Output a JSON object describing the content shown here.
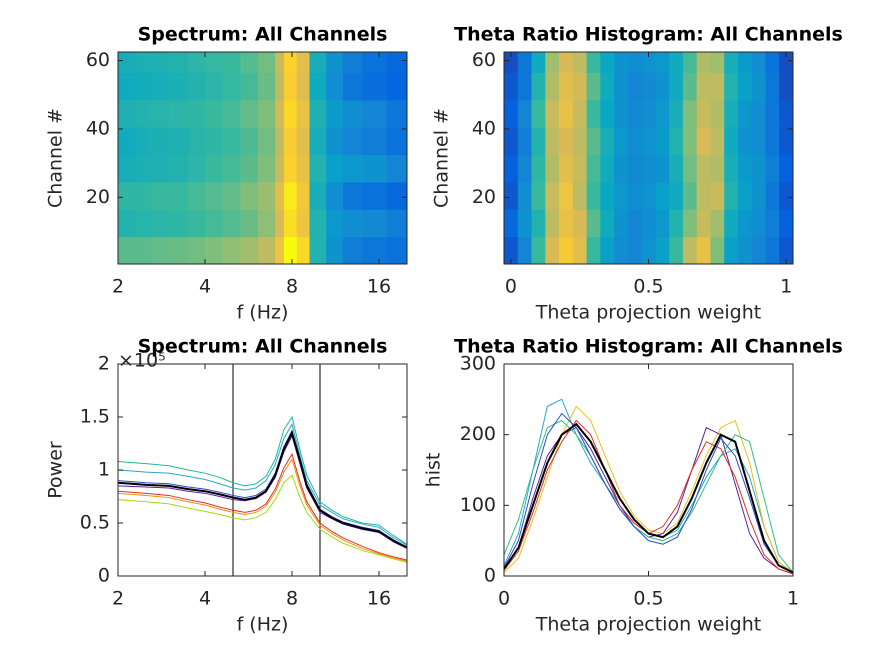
{
  "chart_data": [
    {
      "type": "heatmap",
      "title": "Spectrum: All Channels",
      "xlabel": "f (Hz)",
      "ylabel": "Channel #",
      "xscale": "log",
      "xlim": [
        2,
        20
      ],
      "ylim": [
        0.5,
        62.5
      ],
      "xticks": [
        2,
        4,
        8,
        16
      ],
      "yticks": [
        20,
        40,
        60
      ],
      "colormap": "parula",
      "zlim": [
        0,
        1
      ],
      "xbins": [
        2,
        2.3,
        2.6,
        3,
        3.5,
        4,
        4.6,
        5.3,
        6.1,
        7,
        7.5,
        8.3,
        9.2,
        10.5,
        12,
        14,
        17,
        20
      ],
      "ybins": [
        0.5,
        8.5,
        16.5,
        24.5,
        32.5,
        40.5,
        48.5,
        56.5,
        62.5
      ],
      "z": [
        [
          0.55,
          0.55,
          0.56,
          0.57,
          0.58,
          0.6,
          0.62,
          0.65,
          0.7,
          0.82,
          1.0,
          0.9,
          0.45,
          0.3,
          0.22,
          0.2,
          0.18
        ],
        [
          0.45,
          0.46,
          0.47,
          0.48,
          0.5,
          0.52,
          0.54,
          0.57,
          0.62,
          0.75,
          0.92,
          0.82,
          0.45,
          0.32,
          0.28,
          0.26,
          0.22
        ],
        [
          0.48,
          0.48,
          0.5,
          0.5,
          0.52,
          0.54,
          0.56,
          0.6,
          0.64,
          0.78,
          0.95,
          0.84,
          0.42,
          0.28,
          0.2,
          0.18,
          0.15
        ],
        [
          0.42,
          0.43,
          0.44,
          0.45,
          0.47,
          0.5,
          0.52,
          0.55,
          0.6,
          0.72,
          0.88,
          0.8,
          0.45,
          0.35,
          0.32,
          0.3,
          0.25
        ],
        [
          0.4,
          0.42,
          0.43,
          0.44,
          0.46,
          0.48,
          0.5,
          0.53,
          0.58,
          0.7,
          0.86,
          0.78,
          0.42,
          0.3,
          0.25,
          0.22,
          0.18
        ],
        [
          0.44,
          0.45,
          0.46,
          0.47,
          0.48,
          0.5,
          0.52,
          0.56,
          0.6,
          0.74,
          0.9,
          0.8,
          0.44,
          0.33,
          0.28,
          0.25,
          0.2
        ],
        [
          0.4,
          0.41,
          0.42,
          0.43,
          0.45,
          0.47,
          0.49,
          0.52,
          0.57,
          0.7,
          0.87,
          0.77,
          0.4,
          0.28,
          0.2,
          0.17,
          0.14
        ],
        [
          0.42,
          0.43,
          0.44,
          0.45,
          0.47,
          0.49,
          0.5,
          0.54,
          0.58,
          0.72,
          0.88,
          0.78,
          0.42,
          0.3,
          0.22,
          0.18,
          0.15
        ]
      ]
    },
    {
      "type": "heatmap",
      "title": "Theta Ratio Histogram: All Channels",
      "xlabel": "Theta projection weight",
      "ylabel": "Channel #",
      "xlim": [
        -0.025,
        1.025
      ],
      "ylim": [
        0.5,
        62.5
      ],
      "xticks": [
        0,
        0.5,
        1
      ],
      "yticks": [
        20,
        40,
        60
      ],
      "colormap": "parula",
      "zlim": [
        0,
        1
      ],
      "xbins": [
        -0.025,
        0.025,
        0.075,
        0.125,
        0.175,
        0.225,
        0.275,
        0.325,
        0.375,
        0.425,
        0.475,
        0.525,
        0.575,
        0.625,
        0.675,
        0.725,
        0.775,
        0.825,
        0.875,
        0.925,
        0.975,
        1.025
      ],
      "ybins": [
        0.5,
        8.5,
        16.5,
        24.5,
        32.5,
        40.5,
        48.5,
        56.5,
        62.5
      ],
      "z": [
        [
          0.1,
          0.25,
          0.5,
          0.75,
          0.85,
          0.78,
          0.5,
          0.35,
          0.28,
          0.25,
          0.3,
          0.35,
          0.5,
          0.7,
          0.8,
          0.6,
          0.35,
          0.3,
          0.25,
          0.2,
          0.1
        ],
        [
          0.15,
          0.3,
          0.45,
          0.7,
          0.8,
          0.75,
          0.55,
          0.4,
          0.3,
          0.25,
          0.28,
          0.32,
          0.45,
          0.6,
          0.72,
          0.65,
          0.4,
          0.32,
          0.28,
          0.22,
          0.12
        ],
        [
          0.1,
          0.28,
          0.5,
          0.72,
          0.82,
          0.7,
          0.5,
          0.38,
          0.32,
          0.28,
          0.3,
          0.35,
          0.4,
          0.55,
          0.7,
          0.72,
          0.45,
          0.35,
          0.3,
          0.2,
          0.1
        ],
        [
          0.12,
          0.25,
          0.48,
          0.68,
          0.78,
          0.72,
          0.52,
          0.4,
          0.3,
          0.27,
          0.28,
          0.3,
          0.42,
          0.58,
          0.7,
          0.68,
          0.42,
          0.33,
          0.3,
          0.22,
          0.12
        ],
        [
          0.1,
          0.22,
          0.45,
          0.7,
          0.75,
          0.7,
          0.55,
          0.42,
          0.32,
          0.28,
          0.3,
          0.33,
          0.45,
          0.6,
          0.75,
          0.7,
          0.4,
          0.3,
          0.28,
          0.2,
          0.1
        ],
        [
          0.12,
          0.25,
          0.5,
          0.72,
          0.8,
          0.72,
          0.5,
          0.38,
          0.3,
          0.26,
          0.28,
          0.32,
          0.42,
          0.6,
          0.72,
          0.68,
          0.42,
          0.32,
          0.28,
          0.2,
          0.1
        ],
        [
          0.1,
          0.2,
          0.45,
          0.68,
          0.78,
          0.74,
          0.55,
          0.4,
          0.3,
          0.25,
          0.27,
          0.3,
          0.4,
          0.55,
          0.7,
          0.7,
          0.45,
          0.35,
          0.3,
          0.2,
          0.08
        ],
        [
          0.08,
          0.2,
          0.4,
          0.65,
          0.75,
          0.7,
          0.5,
          0.38,
          0.3,
          0.28,
          0.3,
          0.32,
          0.4,
          0.52,
          0.68,
          0.65,
          0.42,
          0.33,
          0.28,
          0.18,
          0.08
        ]
      ]
    },
    {
      "type": "line",
      "title": "Spectrum: All Channels",
      "xlabel": "f (Hz)",
      "ylabel": "Power",
      "y_exponent_label": "×10⁵",
      "xscale": "log",
      "xlim": [
        2,
        20
      ],
      "ylim": [
        0,
        2
      ],
      "xticks": [
        2,
        4,
        8,
        16
      ],
      "yticks": [
        0,
        0.5,
        1,
        1.5,
        2
      ],
      "vlines": [
        5,
        10
      ],
      "x": [
        2,
        2.5,
        3,
        3.5,
        4,
        4.5,
        5,
        5.5,
        6,
        6.5,
        7,
        7.5,
        8,
        8.5,
        9,
        10,
        11,
        12,
        14,
        16,
        18,
        20
      ],
      "series": [
        {
          "color": "#1fb89a",
          "values": [
            1.08,
            1.06,
            1.04,
            1.0,
            0.97,
            0.93,
            0.88,
            0.85,
            0.87,
            0.94,
            1.1,
            1.38,
            1.5,
            1.2,
            0.95,
            0.7,
            0.62,
            0.56,
            0.5,
            0.48,
            0.38,
            0.3
          ]
        },
        {
          "color": "#2aa8c8",
          "values": [
            1.0,
            0.98,
            0.97,
            0.94,
            0.91,
            0.87,
            0.83,
            0.81,
            0.83,
            0.9,
            1.05,
            1.3,
            1.43,
            1.15,
            0.9,
            0.67,
            0.6,
            0.54,
            0.49,
            0.46,
            0.36,
            0.29
          ]
        },
        {
          "color": "#2b4cc8",
          "values": [
            0.9,
            0.88,
            0.87,
            0.84,
            0.82,
            0.79,
            0.76,
            0.74,
            0.76,
            0.82,
            0.97,
            1.22,
            1.37,
            1.12,
            0.87,
            0.63,
            0.56,
            0.51,
            0.46,
            0.43,
            0.34,
            0.27
          ]
        },
        {
          "color": "#5a1ea0",
          "values": [
            0.85,
            0.84,
            0.83,
            0.8,
            0.78,
            0.75,
            0.72,
            0.71,
            0.73,
            0.79,
            0.93,
            1.17,
            1.32,
            1.07,
            0.83,
            0.6,
            0.54,
            0.49,
            0.44,
            0.41,
            0.32,
            0.26
          ]
        },
        {
          "color": "#e03020",
          "values": [
            0.8,
            0.78,
            0.76,
            0.72,
            0.69,
            0.65,
            0.62,
            0.6,
            0.62,
            0.68,
            0.82,
            1.02,
            1.15,
            0.9,
            0.7,
            0.5,
            0.42,
            0.36,
            0.28,
            0.22,
            0.18,
            0.15
          ]
        },
        {
          "color": "#f08c10",
          "values": [
            0.78,
            0.76,
            0.74,
            0.7,
            0.67,
            0.63,
            0.6,
            0.58,
            0.6,
            0.66,
            0.79,
            0.98,
            1.1,
            0.86,
            0.67,
            0.48,
            0.4,
            0.34,
            0.26,
            0.21,
            0.17,
            0.14
          ]
        },
        {
          "color": "#a8d810",
          "values": [
            0.72,
            0.7,
            0.68,
            0.64,
            0.61,
            0.58,
            0.55,
            0.53,
            0.55,
            0.6,
            0.72,
            0.88,
            0.95,
            0.75,
            0.6,
            0.44,
            0.37,
            0.31,
            0.24,
            0.2,
            0.16,
            0.13
          ]
        },
        {
          "color": "#000000",
          "values": [
            0.88,
            0.86,
            0.85,
            0.82,
            0.8,
            0.77,
            0.74,
            0.72,
            0.74,
            0.8,
            0.95,
            1.2,
            1.35,
            1.1,
            0.85,
            0.62,
            0.55,
            0.5,
            0.45,
            0.42,
            0.33,
            0.27
          ]
        }
      ]
    },
    {
      "type": "line",
      "title": "Theta Ratio Histogram: All Channels",
      "xlabel": "Theta projection weight",
      "ylabel": "hist",
      "xlim": [
        0,
        1
      ],
      "ylim": [
        0,
        300
      ],
      "xticks": [
        0,
        0.5,
        1
      ],
      "yticks": [
        0,
        100,
        200,
        300
      ],
      "x": [
        0,
        0.05,
        0.1,
        0.15,
        0.2,
        0.25,
        0.3,
        0.35,
        0.4,
        0.45,
        0.5,
        0.55,
        0.6,
        0.65,
        0.7,
        0.75,
        0.8,
        0.85,
        0.9,
        0.95,
        1
      ],
      "series": [
        {
          "color": "#2aa8c8",
          "values": [
            15,
            60,
            150,
            240,
            250,
            200,
            160,
            130,
            100,
            75,
            60,
            55,
            65,
            100,
            140,
            170,
            180,
            140,
            70,
            20,
            5
          ]
        },
        {
          "color": "#e8c020",
          "values": [
            5,
            25,
            80,
            140,
            200,
            240,
            220,
            170,
            120,
            85,
            65,
            60,
            75,
            120,
            170,
            210,
            220,
            160,
            70,
            20,
            5
          ]
        },
        {
          "color": "#5a1ea0",
          "values": [
            10,
            40,
            110,
            170,
            200,
            210,
            180,
            140,
            100,
            70,
            55,
            60,
            90,
            150,
            210,
            200,
            130,
            60,
            25,
            10,
            3
          ]
        },
        {
          "color": "#30c080",
          "values": [
            30,
            80,
            150,
            210,
            220,
            200,
            170,
            130,
            95,
            70,
            55,
            50,
            60,
            90,
            130,
            170,
            200,
            190,
            110,
            30,
            5
          ]
        },
        {
          "color": "#e03020",
          "values": [
            8,
            35,
            90,
            150,
            190,
            220,
            200,
            150,
            100,
            75,
            60,
            70,
            100,
            150,
            190,
            180,
            140,
            80,
            30,
            10,
            3
          ]
        },
        {
          "color": "#2b4cc8",
          "values": [
            12,
            50,
            130,
            200,
            230,
            210,
            170,
            130,
            95,
            70,
            50,
            45,
            55,
            95,
            150,
            195,
            170,
            110,
            45,
            15,
            4
          ]
        },
        {
          "color": "#000000",
          "values": [
            10,
            40,
            100,
            160,
            200,
            215,
            190,
            150,
            110,
            80,
            60,
            55,
            70,
            110,
            160,
            200,
            190,
            120,
            50,
            15,
            5
          ]
        }
      ]
    }
  ]
}
